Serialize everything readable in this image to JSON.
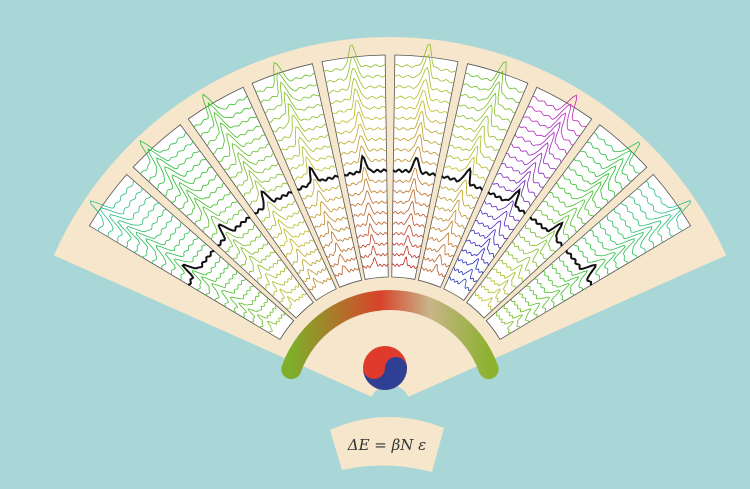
{
  "formula": "ΔE = βN ε"
}
